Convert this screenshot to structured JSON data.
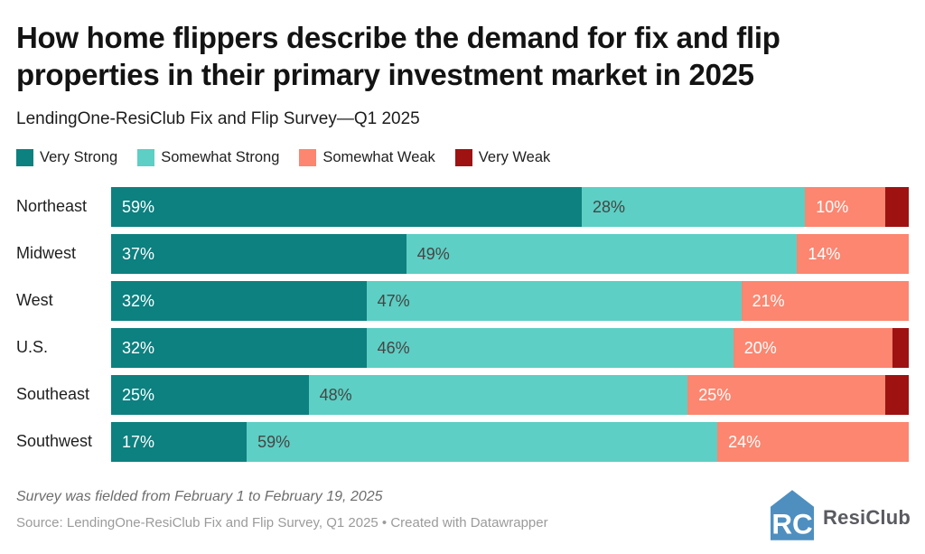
{
  "header": {
    "title": "How home flippers describe the demand for fix and flip properties in their primary investment market in 2025",
    "subtitle": "LendingOne-ResiClub Fix and Flip Survey—Q1 2025"
  },
  "chart_data": {
    "type": "bar",
    "stacked": true,
    "orientation": "horizontal",
    "unit": "%",
    "legend_position": "top",
    "categories": [
      "Northeast",
      "Midwest",
      "West",
      "U.S.",
      "Southeast",
      "Southwest"
    ],
    "series": [
      {
        "name": "Very Strong",
        "color": "#0d8080",
        "label_color": "#ffffff",
        "values": [
          59,
          37,
          32,
          32,
          25,
          17
        ]
      },
      {
        "name": "Somewhat Strong",
        "color": "#5dcfc4",
        "label_color": "#454545",
        "values": [
          28,
          49,
          47,
          46,
          48,
          59
        ]
      },
      {
        "name": "Somewhat Weak",
        "color": "#fc8670",
        "label_color": "#ffffff",
        "values": [
          10,
          14,
          21,
          20,
          25,
          24
        ]
      },
      {
        "name": "Very Weak",
        "color": "#9e1212",
        "label_color": "#ffffff",
        "values": [
          3,
          0,
          0,
          2,
          3,
          0
        ]
      }
    ],
    "label_min_value_to_show": 10
  },
  "footer": {
    "note": "Survey was fielded from February 1 to February 19, 2025",
    "source": "Source: LendingOne-ResiClub Fix and Flip Survey, Q1 2025 • Created with Datawrapper",
    "logo_text": "ResiClub",
    "logo_color": "#4e8fc0"
  }
}
